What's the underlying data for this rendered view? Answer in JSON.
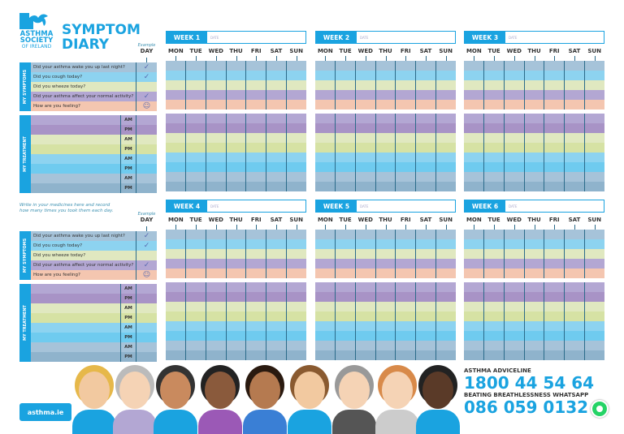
{
  "org": {
    "line1": "ASTHMA",
    "line2": "SOCIETY",
    "line3": "OF IRELAND"
  },
  "title": {
    "line1": "SYMPTOM",
    "line2": "DIARY"
  },
  "example": {
    "label": "Example",
    "day": "DAY",
    "marks": [
      "✓",
      "✓",
      "",
      "✓",
      "☺"
    ]
  },
  "section_labels": {
    "symptoms": "MY SYMPTOMS",
    "treatment": "MY TREATMENT"
  },
  "questions": [
    "Did your asthma wake you up last night?",
    "Did you cough today?",
    "Did you wheeze today?",
    "Did your asthma affect your normal activity?",
    "How are you feeling?"
  ],
  "treatment_slots": [
    "AM",
    "PM",
    "AM",
    "PM",
    "AM",
    "PM",
    "AM",
    "PM"
  ],
  "note": "Write in your medicines here and record how many times you took them each day.",
  "days": [
    "MON",
    "TUE",
    "WED",
    "THU",
    "FRI",
    "SAT",
    "SUN"
  ],
  "date_placeholder": "DATE",
  "weeks": [
    "WEEK 1",
    "WEEK 2",
    "WEEK 3",
    "WEEK 4",
    "WEEK 5",
    "WEEK 6"
  ],
  "colors": {
    "accent": "#1aa3e0",
    "symptom_rows": [
      "#a6c3d9",
      "#8dd3f0",
      "#e0e8c0",
      "#b3a7d3",
      "#f4c6b0"
    ],
    "treatment_rows": [
      "#b3a7d3",
      "#a893c6",
      "#e0e8c0",
      "#d6e2a4",
      "#8dd3f0",
      "#6fcbef",
      "#a6c3d9",
      "#8fb3cc"
    ]
  },
  "footer": {
    "website": "asthma.ie",
    "adviceline_label": "ASTHMA ADVICELINE",
    "adviceline_number": "1800 44 54 64",
    "whatsapp_label": "BEATING BREATHLESSNESS WHATSAPP",
    "whatsapp_number": "086 059 0132",
    "whatsapp_icon": "whatsapp-icon"
  }
}
